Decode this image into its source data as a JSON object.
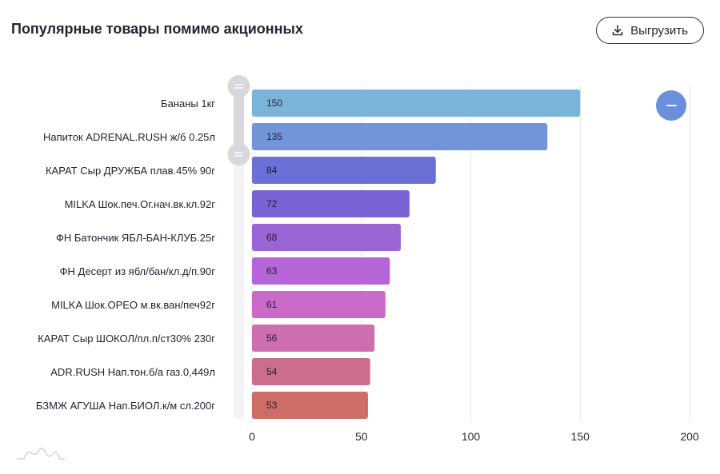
{
  "header": {
    "title": "Популярные товары помимо акционных",
    "export_label": "Выгрузить",
    "export_icon": "download-icon"
  },
  "controls": {
    "zoom_out_icon": "minus-icon",
    "zoom_color": "#6a8fdb"
  },
  "chart_data": {
    "type": "bar",
    "orientation": "horizontal",
    "categories": [
      "Бананы 1кг",
      "Напиток ADRENAL.RUSH ж/б 0.25л",
      "КАРАТ Сыр ДРУЖБА плав.45% 90г",
      "MILKA Шок.печ.Ог.нач.вк.кл.92г",
      "ФН Батончик ЯБЛ-БАН-КЛУБ.25г",
      "ФН Десерт из ябл/бан/кл.д/п.90г",
      "MILKA Шок.ОРЕО м.вк.ван/печ92г",
      "КАРАТ Сыр ШОКОЛ/пл.п/ст30% 230г",
      "ADR.RUSH Нап.тон.б/а газ.0,449л",
      "БЗМЖ АГУША Нап.БИОЛ.к/м сл.200г"
    ],
    "values": [
      150,
      135,
      84,
      72,
      68,
      63,
      61,
      56,
      54,
      53
    ],
    "colors": [
      "#7bb4d9",
      "#7294d9",
      "#6a70d6",
      "#7a63d4",
      "#9a64d4",
      "#b665d7",
      "#c96ac8",
      "#cd6fae",
      "#cd6d8d",
      "#cd6d66"
    ],
    "xlim": [
      0,
      200
    ],
    "xticks": [
      0,
      50,
      100,
      150,
      200
    ],
    "grid": true,
    "data_labels": true
  }
}
